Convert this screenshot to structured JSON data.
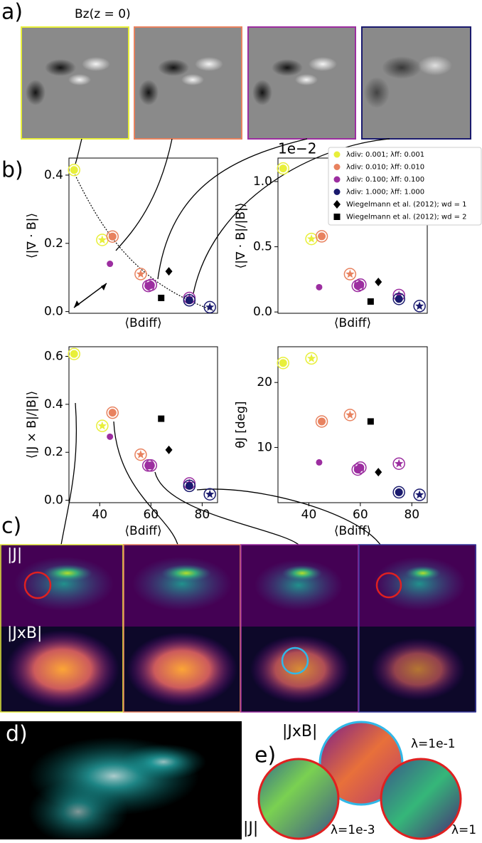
{
  "figure": {
    "panel_a": "a)",
    "panel_b": "b)",
    "panel_c": "c)",
    "panel_d": "d)",
    "panel_e": "e)",
    "bz_label": "Bz(z = 0)",
    "c_j_label": "|J|",
    "c_jxb_label": "|JxB|",
    "e_jxb_label": "|JxB|",
    "e_j_label": "|J|",
    "e_lambda_top": "λ=1e-1",
    "e_lambda_left": "λ=1e-3",
    "e_lambda_right": "λ=1"
  },
  "chart_data": [
    {
      "type": "scatter",
      "ylabel": "⟨|∇ · B|⟩",
      "xlabel": "⟨Bdiff⟩",
      "xlim": [
        28,
        86
      ],
      "ylim": [
        -0.005,
        0.45
      ],
      "yticks": [
        {
          "value": 0,
          "label": "0.0"
        },
        0.2,
        0.4
      ],
      "series": [
        {
          "color": "#e8ef3a",
          "x": [
            30,
            41
          ],
          "values": [
            0.415,
            0.21
          ],
          "markers": [
            "ring",
            "star"
          ]
        },
        {
          "color": "#e8825f",
          "x": [
            45,
            56
          ],
          "values": [
            0.22,
            0.11
          ],
          "markers": [
            "ring",
            "star"
          ]
        },
        {
          "color": "#9c2ea0",
          "x": [
            44,
            59,
            60,
            75
          ],
          "values": [
            0.14,
            0.075,
            0.078,
            0.04
          ],
          "markers": [
            "dot",
            "ring",
            "ring",
            "star"
          ]
        },
        {
          "color": "#1a1a6e",
          "x": [
            75,
            83
          ],
          "values": [
            0.033,
            0.013
          ],
          "markers": [
            "ring",
            "star"
          ]
        },
        {
          "color": "#000000",
          "x": [
            67
          ],
          "values": [
            0.118
          ],
          "markers": [
            "diamond"
          ]
        },
        {
          "color": "#000000",
          "x": [
            64
          ],
          "values": [
            0.04
          ],
          "markers": [
            "square"
          ]
        }
      ]
    },
    {
      "type": "scatter",
      "ylabel": "⟨|∇ · B|/|B|⟩",
      "xlabel": "⟨Bdiff⟩",
      "offset_label": "1e−2",
      "xlim": [
        28,
        86
      ],
      "ylim": [
        -0.01,
        1.18
      ],
      "yticks": [
        {
          "value": 0,
          "label": "0.0"
        },
        0.5,
        {
          "value": 1,
          "label": "1.0"
        }
      ],
      "legend": "upper right",
      "series": [
        {
          "name": "λdiv: 0.001; λff: 0.001",
          "color": "#e8ef3a",
          "x": [
            30,
            41
          ],
          "values": [
            1.1,
            0.56
          ],
          "markers": [
            "ring",
            "star"
          ]
        },
        {
          "name": "λdiv: 0.010; λff: 0.010",
          "color": "#e8825f",
          "x": [
            45,
            56
          ],
          "values": [
            0.58,
            0.29
          ],
          "markers": [
            "ring",
            "star"
          ]
        },
        {
          "name": "λdiv: 0.100; λff: 0.100",
          "color": "#9c2ea0",
          "x": [
            44,
            59,
            60,
            75
          ],
          "values": [
            0.19,
            0.2,
            0.21,
            0.13
          ],
          "markers": [
            "dot",
            "ring",
            "ring",
            "star"
          ]
        },
        {
          "name": "λdiv: 1.000; λff: 1.000",
          "color": "#1a1a6e",
          "x": [
            75,
            83
          ],
          "values": [
            0.1,
            0.045
          ],
          "markers": [
            "ring",
            "star"
          ]
        },
        {
          "name": "Wiegelmann et al. (2012); wd = 1",
          "color": "#000000",
          "x": [
            67
          ],
          "values": [
            0.23
          ],
          "markers": [
            "diamond"
          ]
        },
        {
          "name": "Wiegelmann et al. (2012); wd = 2",
          "color": "#000000",
          "x": [
            64
          ],
          "values": [
            0.08
          ],
          "markers": [
            "square"
          ]
        }
      ]
    },
    {
      "type": "scatter",
      "ylabel": "⟨|J × B|/|B|⟩",
      "xlabel": "⟨Bdiff⟩",
      "xlim": [
        28,
        86
      ],
      "ylim": [
        -0.01,
        0.64
      ],
      "xticks": [
        40,
        60,
        80
      ],
      "yticks": [
        {
          "value": 0,
          "label": "0.0"
        },
        0.2,
        0.4,
        0.6
      ],
      "series": [
        {
          "color": "#e8ef3a",
          "x": [
            30,
            41
          ],
          "values": [
            0.61,
            0.31
          ],
          "markers": [
            "ring",
            "star"
          ]
        },
        {
          "color": "#e8825f",
          "x": [
            45,
            56
          ],
          "values": [
            0.365,
            0.19
          ],
          "markers": [
            "ring",
            "star"
          ]
        },
        {
          "color": "#9c2ea0",
          "x": [
            44,
            59,
            60,
            75
          ],
          "values": [
            0.265,
            0.145,
            0.145,
            0.07
          ],
          "markers": [
            "dot",
            "ring",
            "ring",
            "star"
          ]
        },
        {
          "color": "#1a1a6e",
          "x": [
            75,
            83
          ],
          "values": [
            0.06,
            0.025
          ],
          "markers": [
            "ring",
            "star"
          ]
        },
        {
          "color": "#000000",
          "x": [
            67
          ],
          "values": [
            0.21
          ],
          "markers": [
            "diamond"
          ]
        },
        {
          "color": "#000000",
          "x": [
            64
          ],
          "values": [
            0.34
          ],
          "markers": [
            "square"
          ]
        }
      ]
    },
    {
      "type": "scatter",
      "ylabel": "θJ [deg]",
      "xlabel": "⟨Bdiff⟩",
      "xlim": [
        28,
        86
      ],
      "ylim": [
        1.5,
        25.5
      ],
      "xticks": [
        40,
        60,
        80
      ],
      "yticks": [
        10,
        20
      ],
      "series": [
        {
          "color": "#e8ef3a",
          "x": [
            30,
            41
          ],
          "values": [
            23,
            23.7
          ],
          "markers": [
            "ring",
            "star"
          ]
        },
        {
          "color": "#e8825f",
          "x": [
            45,
            56
          ],
          "values": [
            14,
            15
          ],
          "markers": [
            "ring",
            "star"
          ]
        },
        {
          "color": "#9c2ea0",
          "x": [
            44,
            59,
            60,
            75
          ],
          "values": [
            7.7,
            6.6,
            6.9,
            7.5
          ],
          "markers": [
            "dot",
            "ring",
            "ring",
            "star"
          ]
        },
        {
          "color": "#1a1a6e",
          "x": [
            75,
            83
          ],
          "values": [
            3.1,
            2.7
          ],
          "markers": [
            "ring",
            "star"
          ]
        },
        {
          "color": "#000000",
          "x": [
            67
          ],
          "values": [
            6.2
          ],
          "markers": [
            "diamond"
          ]
        },
        {
          "color": "#000000",
          "x": [
            64
          ],
          "values": [
            14
          ],
          "markers": [
            "square"
          ]
        }
      ]
    }
  ]
}
